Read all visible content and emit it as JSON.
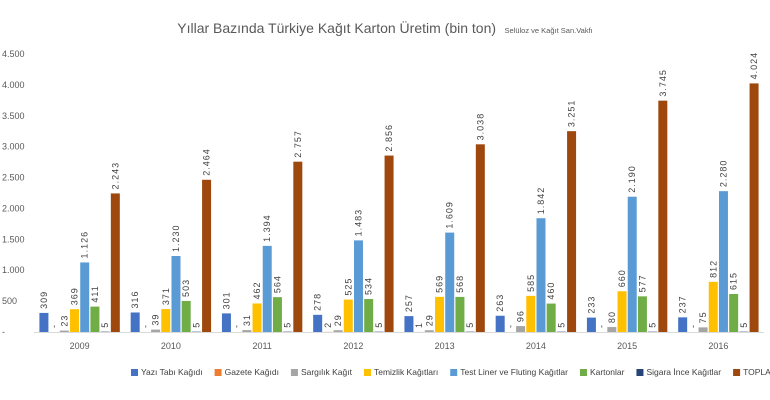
{
  "chart_data": {
    "type": "bar",
    "title": "Yıllar Bazında Türkiye Kağıt Karton Üretim (bin ton)",
    "source": "Selüloz ve Kağıt San.Vakfı",
    "categories": [
      "2009",
      "2010",
      "2011",
      "2012",
      "2013",
      "2014",
      "2015",
      "2016"
    ],
    "ylim": [
      0,
      4500
    ],
    "yticks": [
      0,
      500,
      1000,
      1500,
      2000,
      2500,
      3000,
      3500,
      4000,
      4500
    ],
    "ytick_labels": [
      "-",
      "500",
      "1.000",
      "1.500",
      "2.000",
      "2.500",
      "3.000",
      "3.500",
      "4.000",
      "4.500"
    ],
    "grid": false,
    "legend_position": "bottom",
    "series": [
      {
        "name": "Yazı Tabı Kağıdı",
        "color": "#4472C4",
        "values": [
          309,
          316,
          301,
          278,
          257,
          263,
          233,
          237
        ],
        "labels": [
          "309",
          "316",
          "301",
          "278",
          "257",
          "263",
          "233",
          "237"
        ]
      },
      {
        "name": "Gazete Kağıdı",
        "color": "#ED7D31",
        "values": [
          0,
          0,
          0,
          2,
          1,
          0,
          0,
          0
        ],
        "labels": [
          "-",
          "-",
          "-",
          "2",
          "1",
          "-",
          "-",
          "-"
        ]
      },
      {
        "name": "Sargılık Kağıt",
        "color": "#A5A5A5",
        "values": [
          23,
          39,
          31,
          29,
          29,
          96,
          80,
          75
        ],
        "labels": [
          "23",
          "39",
          "31",
          "29",
          "29",
          "96",
          "80",
          "75"
        ]
      },
      {
        "name": "Temizlik Kağıtları",
        "color": "#FFC000",
        "values": [
          369,
          371,
          462,
          525,
          569,
          585,
          660,
          812
        ],
        "labels": [
          "369",
          "371",
          "462",
          "525",
          "569",
          "585",
          "660",
          "812"
        ]
      },
      {
        "name": "Test Liner ve Fluting Kağıtlar",
        "color": "#5B9BD5",
        "values": [
          1126,
          1230,
          1394,
          1483,
          1609,
          1842,
          2190,
          2280
        ],
        "labels": [
          "1.126",
          "1.230",
          "1.394",
          "1.483",
          "1.609",
          "1.842",
          "2.190",
          "2.280"
        ]
      },
      {
        "name": "Kartonlar",
        "color": "#70AD47",
        "values": [
          411,
          503,
          564,
          534,
          568,
          460,
          577,
          615
        ],
        "labels": [
          "411",
          "503",
          "564",
          "534",
          "568",
          "460",
          "577",
          "615"
        ]
      },
      {
        "name": "Sigara İnce Kağıtlar",
        "color": "#264478",
        "values": [
          5,
          5,
          5,
          5,
          5,
          5,
          5,
          5
        ],
        "labels": [
          "5",
          "5",
          "5",
          "5",
          "5",
          "5",
          "5",
          "5"
        ]
      },
      {
        "name": "TOPLAM",
        "color": "#9E480E",
        "values": [
          2243,
          2464,
          2757,
          2856,
          3038,
          3251,
          3745,
          4024
        ],
        "labels": [
          "2.243",
          "2.464",
          "2.757",
          "2.856",
          "3.038",
          "3.251",
          "3.745",
          "4.024"
        ]
      }
    ]
  }
}
